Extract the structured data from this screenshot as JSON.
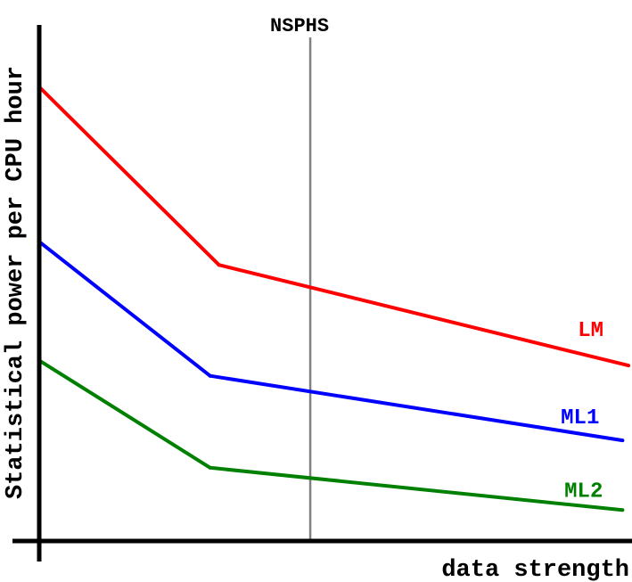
{
  "chart_data": {
    "type": "line",
    "title": "",
    "xlabel": "data strength",
    "ylabel": "Statistical power per CPU hour",
    "xlim": [
      0,
      1
    ],
    "ylim": [
      0,
      1
    ],
    "grid": false,
    "legend": "inline labels at line ends",
    "reference_line": {
      "label": "NSPHS",
      "x": 0.46,
      "color": "#808080"
    },
    "series": [
      {
        "name": "LM",
        "color": "#ff0000",
        "x": [
          0.0,
          0.305,
          1.0
        ],
        "y": [
          0.88,
          0.535,
          0.34
        ]
      },
      {
        "name": "ML1",
        "color": "#0000ff",
        "x": [
          0.0,
          0.29,
          0.99
        ],
        "y": [
          0.58,
          0.32,
          0.195
        ]
      },
      {
        "name": "ML2",
        "color": "#008000",
        "x": [
          0.0,
          0.29,
          0.99
        ],
        "y": [
          0.35,
          0.142,
          0.06
        ]
      }
    ]
  }
}
